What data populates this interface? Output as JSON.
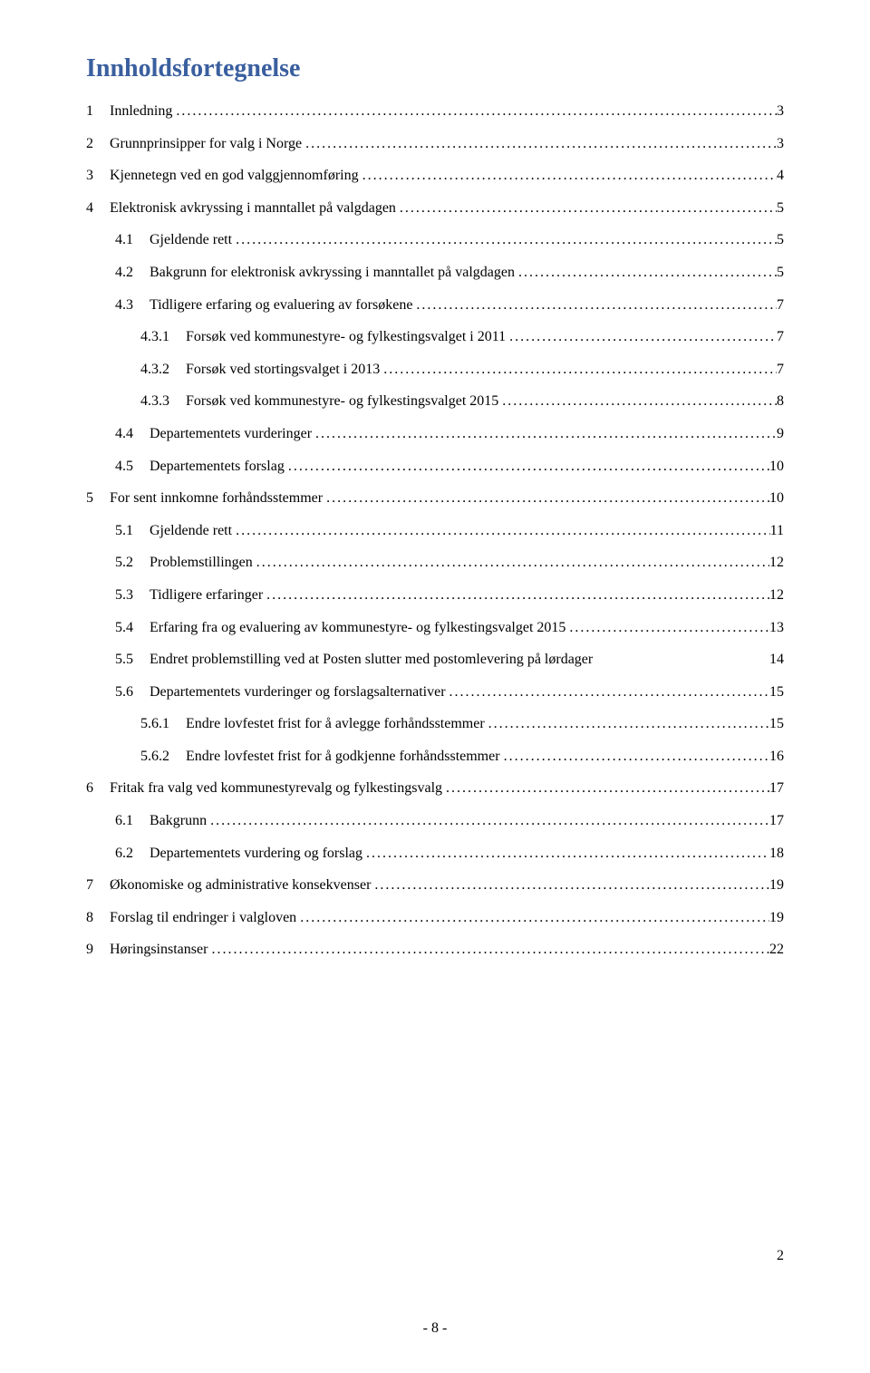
{
  "title": "Innholdsfortegnelse",
  "colors": {
    "title_color": "#3a5f9f",
    "text_color": "#000000",
    "background": "#ffffff"
  },
  "typography": {
    "title_fontsize": 28,
    "body_fontsize": 16,
    "font_family": "Times New Roman"
  },
  "entries": [
    {
      "num": "1",
      "text": "Innledning",
      "page": "3",
      "indent": 0
    },
    {
      "num": "2",
      "text": "Grunnprinsipper for valg i Norge",
      "page": "3",
      "indent": 0
    },
    {
      "num": "3",
      "text": "Kjennetegn ved en god valggjennomføring",
      "page": "4",
      "indent": 0
    },
    {
      "num": "4",
      "text": "Elektronisk avkryssing i manntallet på valgdagen",
      "page": "5",
      "indent": 0
    },
    {
      "num": "4.1",
      "text": "Gjeldende rett",
      "page": "5",
      "indent": 1
    },
    {
      "num": "4.2",
      "text": "Bakgrunn for elektronisk avkryssing i manntallet på valgdagen",
      "page": "5",
      "indent": 1
    },
    {
      "num": "4.3",
      "text": "Tidligere erfaring og evaluering av forsøkene",
      "page": "7",
      "indent": 1
    },
    {
      "num": "4.3.1",
      "text": "Forsøk ved kommunestyre- og fylkestingsvalget i 2011",
      "page": "7",
      "indent": 2
    },
    {
      "num": "4.3.2",
      "text": "Forsøk ved stortingsvalget i 2013",
      "page": "7",
      "indent": 2
    },
    {
      "num": "4.3.3",
      "text": "Forsøk ved kommunestyre- og fylkestingsvalget 2015",
      "page": "8",
      "indent": 2
    },
    {
      "num": "4.4",
      "text": "Departementets vurderinger",
      "page": "9",
      "indent": 1
    },
    {
      "num": "4.5",
      "text": "Departementets forslag",
      "page": "10",
      "indent": 1
    },
    {
      "num": "5",
      "text": "For sent innkomne forhåndsstemmer",
      "page": "10",
      "indent": 0
    },
    {
      "num": "5.1",
      "text": "Gjeldende rett",
      "page": "11",
      "indent": 1
    },
    {
      "num": "5.2",
      "text": "Problemstillingen",
      "page": "12",
      "indent": 1
    },
    {
      "num": "5.3",
      "text": "Tidligere erfaringer",
      "page": "12",
      "indent": 1
    },
    {
      "num": "5.4",
      "text": "Erfaring fra og evaluering av kommunestyre- og fylkestingsvalget 2015",
      "page": "13",
      "indent": 1
    },
    {
      "num": "5.5",
      "text": "Endret problemstilling ved at Posten slutter med postomlevering på lørdager",
      "page": "14",
      "indent": 1,
      "nodots": true
    },
    {
      "num": "5.6",
      "text": "Departementets vurderinger og forslagsalternativer",
      "page": "15",
      "indent": 1
    },
    {
      "num": "5.6.1",
      "text": "Endre lovfestet frist for å avlegge forhåndsstemmer",
      "page": "15",
      "indent": 2
    },
    {
      "num": "5.6.2",
      "text": "Endre lovfestet frist for å godkjenne forhåndsstemmer",
      "page": "16",
      "indent": 2
    },
    {
      "num": "6",
      "text": "Fritak fra valg ved kommunestyrevalg og fylkestingsvalg",
      "page": "17",
      "indent": 0
    },
    {
      "num": "6.1",
      "text": "Bakgrunn",
      "page": "17",
      "indent": 1
    },
    {
      "num": "6.2",
      "text": "Departementets vurdering og forslag",
      "page": "18",
      "indent": 1
    },
    {
      "num": "7",
      "text": "Økonomiske og administrative konsekvenser",
      "page": "19",
      "indent": 0
    },
    {
      "num": "8",
      "text": "Forslag til endringer i valgloven",
      "page": "19",
      "indent": 0
    },
    {
      "num": "9",
      "text": "Høringsinstanser",
      "page": "22",
      "indent": 0
    }
  ],
  "page_number_inner": "2",
  "page_number_outer": "- 8 -"
}
